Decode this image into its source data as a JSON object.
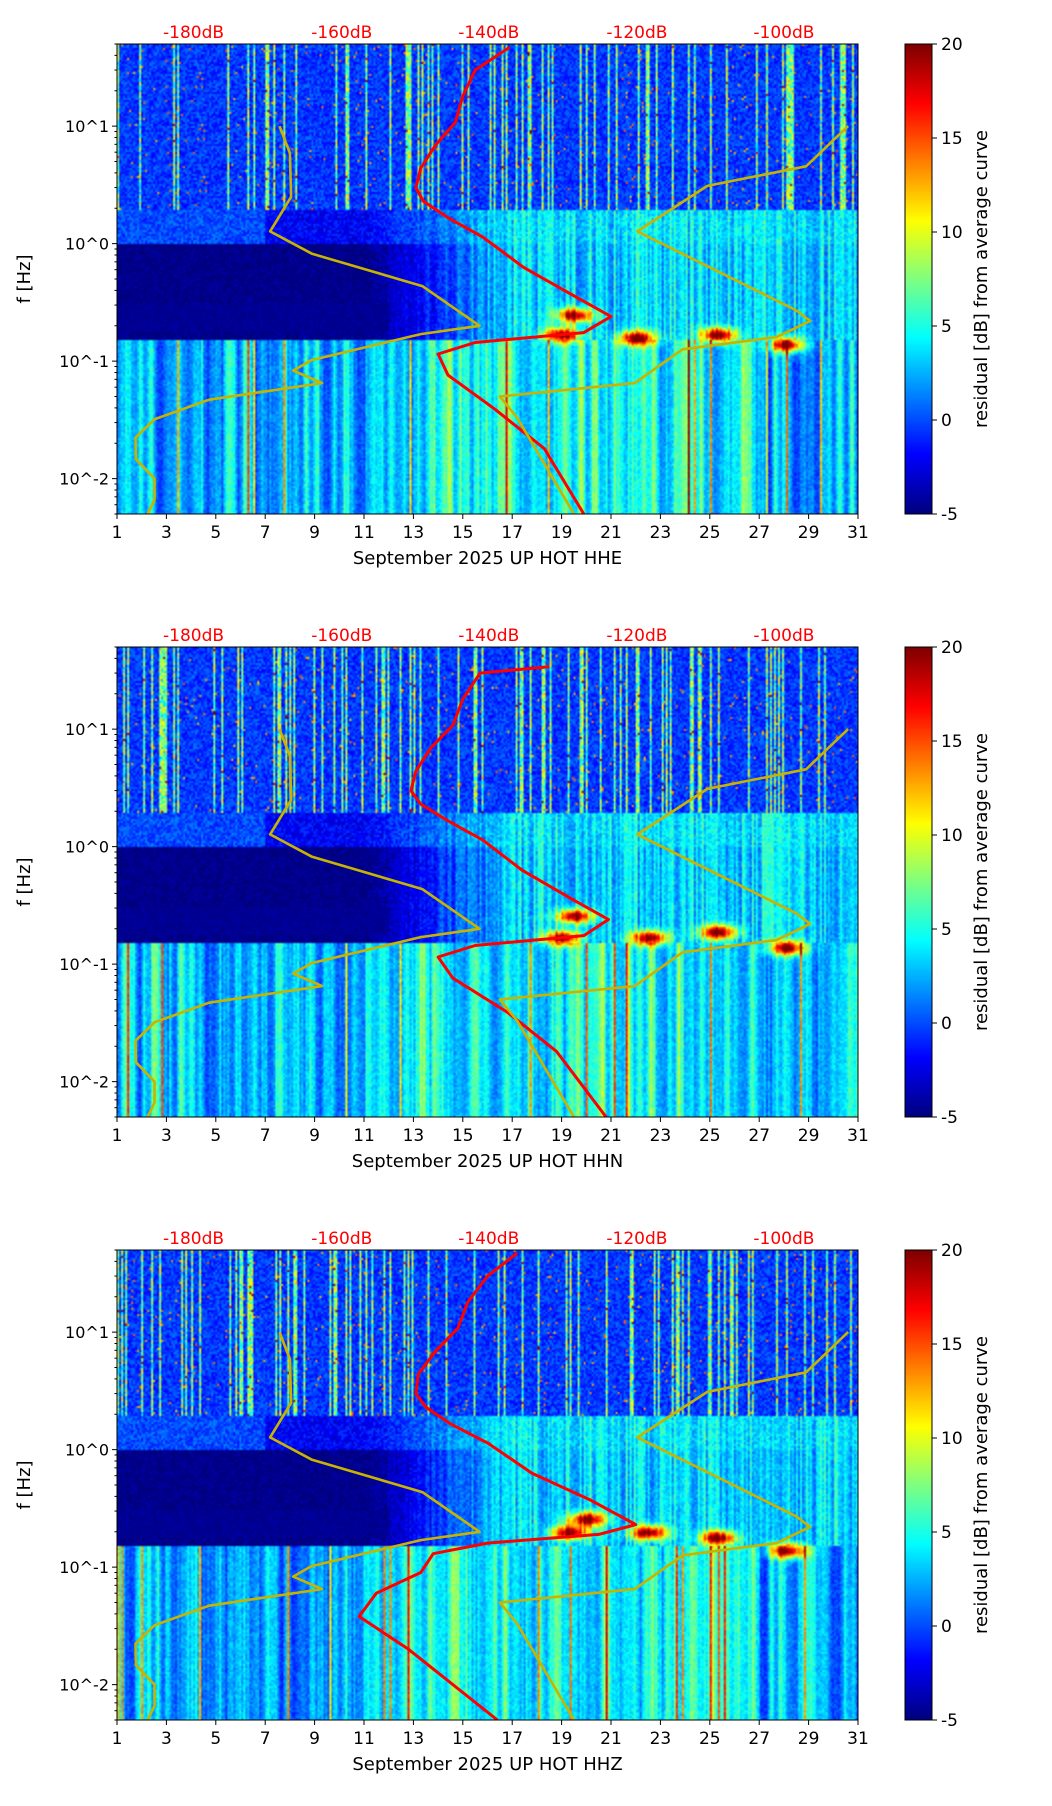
{
  "chart_data": [
    {
      "type": "heatmap",
      "title": "",
      "xlabel": "September 2025 UP HOT  HHE",
      "ylabel": "f [Hz]",
      "xlim": [
        1,
        31
      ],
      "ylim": [
        0.005,
        50
      ],
      "yscale": "log",
      "x_ticks": [
        1,
        3,
        5,
        7,
        9,
        11,
        13,
        15,
        17,
        19,
        21,
        23,
        25,
        27,
        29,
        31
      ],
      "y_ticks": [
        {
          "value": 10,
          "label": "10^1"
        },
        {
          "value": 1,
          "label": "10^0"
        },
        {
          "value": 0.1,
          "label": "10^-1"
        },
        {
          "value": 0.01,
          "label": "10^-2"
        }
      ],
      "top_axis_labels": [
        {
          "day": 4.1,
          "label": "-180dB"
        },
        {
          "day": 10.1,
          "label": "-160dB"
        },
        {
          "day": 16.05,
          "label": "-140dB"
        },
        {
          "day": 22.05,
          "label": "-120dB"
        },
        {
          "day": 28.0,
          "label": "-100dB"
        }
      ],
      "colorbar": {
        "label": "residual [dB] from average curve",
        "range": [
          -5,
          20
        ],
        "ticks": [
          20,
          15,
          10,
          5,
          0,
          -5
        ],
        "colormap": "jet"
      },
      "series": [
        {
          "name": "average PSD curve",
          "color": "#ff0000",
          "points": [
            [
              16.9,
              47
            ],
            [
              15.5,
              30
            ],
            [
              15.0,
              18
            ],
            [
              14.7,
              10.8
            ],
            [
              13.9,
              6.9
            ],
            [
              13.3,
              4.4
            ],
            [
              13.1,
              3.0
            ],
            [
              13.4,
              2.3
            ],
            [
              14.4,
              1.66
            ],
            [
              15.8,
              1.14
            ],
            [
              17.45,
              0.63
            ],
            [
              19.4,
              0.37
            ],
            [
              21.0,
              0.24
            ],
            [
              19.9,
              0.175
            ],
            [
              15.5,
              0.144
            ],
            [
              14.0,
              0.115
            ],
            [
              14.4,
              0.076
            ],
            [
              16.3,
              0.039
            ],
            [
              18.3,
              0.018
            ],
            [
              19.9,
              0.005
            ]
          ]
        },
        {
          "name": "low noise model",
          "color": "#c8b400",
          "points": [
            [
              7.58,
              10
            ],
            [
              8.0,
              5.9
            ],
            [
              8.05,
              2.5
            ],
            [
              7.2,
              1.27
            ],
            [
              8.9,
              0.82
            ],
            [
              13.36,
              0.435
            ],
            [
              15.68,
              0.2
            ],
            [
              13.3,
              0.17
            ],
            [
              8.88,
              0.102
            ],
            [
              8.13,
              0.083
            ],
            [
              9.3,
              0.065
            ],
            [
              4.73,
              0.047
            ],
            [
              2.52,
              0.032
            ],
            [
              1.75,
              0.0223
            ],
            [
              1.77,
              0.0146
            ],
            [
              2.52,
              0.01
            ],
            [
              2.52,
              0.0066
            ],
            [
              2.24,
              0.005
            ]
          ]
        },
        {
          "name": "high noise model",
          "color": "#c8b400",
          "points": [
            [
              30.6,
              10
            ],
            [
              28.9,
              4.55
            ],
            [
              24.9,
              3.1
            ],
            [
              22.07,
              1.27
            ],
            [
              28.5,
              0.27
            ],
            [
              29.06,
              0.22
            ],
            [
              27.7,
              0.16
            ],
            [
              23.9,
              0.126
            ],
            [
              21.96,
              0.065
            ],
            [
              16.5,
              0.05
            ],
            [
              17.2,
              0.033
            ],
            [
              19.5,
              0.005
            ]
          ]
        }
      ],
      "hotspots": [
        [
          19,
          0.17
        ],
        [
          28.1,
          0.14
        ],
        [
          22,
          0.16
        ],
        [
          25.3,
          0.17
        ],
        [
          19.5,
          0.25
        ]
      ]
    },
    {
      "type": "heatmap",
      "title": "",
      "xlabel": "September 2025 UP HOT  HHN",
      "ylabel": "f [Hz]",
      "xlim": [
        1,
        31
      ],
      "ylim": [
        0.005,
        50
      ],
      "yscale": "log",
      "x_ticks": [
        1,
        3,
        5,
        7,
        9,
        11,
        13,
        15,
        17,
        19,
        21,
        23,
        25,
        27,
        29,
        31
      ],
      "y_ticks": [
        {
          "value": 10,
          "label": "10^1"
        },
        {
          "value": 1,
          "label": "10^0"
        },
        {
          "value": 0.1,
          "label": "10^-1"
        },
        {
          "value": 0.01,
          "label": "10^-2"
        }
      ],
      "top_axis_labels": [
        {
          "day": 4.1,
          "label": "-180dB"
        },
        {
          "day": 10.1,
          "label": "-160dB"
        },
        {
          "day": 16.05,
          "label": "-140dB"
        },
        {
          "day": 22.05,
          "label": "-120dB"
        },
        {
          "day": 28.0,
          "label": "-100dB"
        }
      ],
      "colorbar": {
        "label": "residual [dB] from average curve",
        "range": [
          -5,
          20
        ],
        "ticks": [
          20,
          15,
          10,
          5,
          0,
          -5
        ],
        "colormap": "jet"
      },
      "series": [
        {
          "name": "average PSD curve",
          "color": "#ff0000",
          "points": [
            [
              18.5,
              34
            ],
            [
              15.7,
              30
            ],
            [
              15.0,
              18
            ],
            [
              14.6,
              10.8
            ],
            [
              13.7,
              6.9
            ],
            [
              13.1,
              4.4
            ],
            [
              12.9,
              3.0
            ],
            [
              13.3,
              2.3
            ],
            [
              14.4,
              1.66
            ],
            [
              15.8,
              1.14
            ],
            [
              17.4,
              0.63
            ],
            [
              19.3,
              0.37
            ],
            [
              20.9,
              0.24
            ],
            [
              19.9,
              0.175
            ],
            [
              15.5,
              0.144
            ],
            [
              14.0,
              0.115
            ],
            [
              14.6,
              0.076
            ],
            [
              16.8,
              0.039
            ],
            [
              18.8,
              0.018
            ],
            [
              20.8,
              0.005
            ]
          ]
        },
        {
          "name": "low noise model",
          "color": "#c8b400",
          "points": [
            [
              7.58,
              10
            ],
            [
              8.0,
              5.9
            ],
            [
              8.05,
              2.5
            ],
            [
              7.2,
              1.27
            ],
            [
              8.9,
              0.82
            ],
            [
              13.36,
              0.435
            ],
            [
              15.68,
              0.2
            ],
            [
              13.3,
              0.17
            ],
            [
              8.88,
              0.102
            ],
            [
              8.13,
              0.083
            ],
            [
              9.3,
              0.065
            ],
            [
              4.73,
              0.047
            ],
            [
              2.52,
              0.032
            ],
            [
              1.75,
              0.0223
            ],
            [
              1.77,
              0.0146
            ],
            [
              2.52,
              0.01
            ],
            [
              2.52,
              0.0066
            ],
            [
              2.24,
              0.005
            ]
          ]
        },
        {
          "name": "high noise model",
          "color": "#c8b400",
          "points": [
            [
              30.6,
              10
            ],
            [
              28.9,
              4.55
            ],
            [
              24.9,
              3.1
            ],
            [
              22.07,
              1.27
            ],
            [
              28.5,
              0.27
            ],
            [
              29.06,
              0.22
            ],
            [
              27.7,
              0.16
            ],
            [
              23.9,
              0.126
            ],
            [
              21.96,
              0.065
            ],
            [
              16.5,
              0.05
            ],
            [
              17.2,
              0.033
            ],
            [
              19.5,
              0.005
            ]
          ]
        }
      ],
      "hotspots": [
        [
          19,
          0.17
        ],
        [
          28.1,
          0.14
        ],
        [
          25.3,
          0.19
        ],
        [
          19.5,
          0.26
        ],
        [
          22.5,
          0.17
        ]
      ]
    },
    {
      "type": "heatmap",
      "title": "",
      "xlabel": "September 2025 UP HOT  HHZ",
      "ylabel": "f [Hz]",
      "xlim": [
        1,
        31
      ],
      "ylim": [
        0.005,
        50
      ],
      "yscale": "log",
      "x_ticks": [
        1,
        3,
        5,
        7,
        9,
        11,
        13,
        15,
        17,
        19,
        21,
        23,
        25,
        27,
        29,
        31
      ],
      "y_ticks": [
        {
          "value": 10,
          "label": "10^1"
        },
        {
          "value": 1,
          "label": "10^0"
        },
        {
          "value": 0.1,
          "label": "10^-1"
        },
        {
          "value": 0.01,
          "label": "10^-2"
        }
      ],
      "top_axis_labels": [
        {
          "day": 4.1,
          "label": "-180dB"
        },
        {
          "day": 10.1,
          "label": "-160dB"
        },
        {
          "day": 16.05,
          "label": "-140dB"
        },
        {
          "day": 22.05,
          "label": "-120dB"
        },
        {
          "day": 28.0,
          "label": "-100dB"
        }
      ],
      "colorbar": {
        "label": "residual [dB] from average curve",
        "range": [
          -5,
          20
        ],
        "ticks": [
          20,
          15,
          10,
          5,
          0,
          -5
        ],
        "colormap": "jet"
      },
      "series": [
        {
          "name": "average PSD curve",
          "color": "#ff0000",
          "points": [
            [
              17.2,
              47
            ],
            [
              16.0,
              30
            ],
            [
              15.2,
              18
            ],
            [
              14.8,
              10.8
            ],
            [
              13.9,
              6.9
            ],
            [
              13.2,
              4.4
            ],
            [
              13.1,
              3.0
            ],
            [
              13.5,
              2.3
            ],
            [
              14.5,
              1.66
            ],
            [
              16.0,
              1.14
            ],
            [
              17.8,
              0.63
            ],
            [
              20.2,
              0.37
            ],
            [
              22.0,
              0.23
            ],
            [
              20.5,
              0.19
            ],
            [
              16.0,
              0.16
            ],
            [
              13.8,
              0.13
            ],
            [
              13.3,
              0.09
            ],
            [
              11.5,
              0.06
            ],
            [
              10.8,
              0.038
            ],
            [
              12.8,
              0.02
            ],
            [
              16.4,
              0.005
            ]
          ]
        },
        {
          "name": "low noise model",
          "color": "#c8b400",
          "points": [
            [
              7.58,
              10
            ],
            [
              8.0,
              5.9
            ],
            [
              8.05,
              2.5
            ],
            [
              7.2,
              1.27
            ],
            [
              8.9,
              0.82
            ],
            [
              13.36,
              0.435
            ],
            [
              15.68,
              0.2
            ],
            [
              13.3,
              0.17
            ],
            [
              8.88,
              0.102
            ],
            [
              8.13,
              0.083
            ],
            [
              9.3,
              0.065
            ],
            [
              4.73,
              0.047
            ],
            [
              2.52,
              0.032
            ],
            [
              1.75,
              0.0223
            ],
            [
              1.77,
              0.0146
            ],
            [
              2.52,
              0.01
            ],
            [
              2.52,
              0.0066
            ],
            [
              2.24,
              0.005
            ]
          ]
        },
        {
          "name": "high noise model",
          "color": "#c8b400",
          "points": [
            [
              30.6,
              10
            ],
            [
              28.9,
              4.55
            ],
            [
              24.9,
              3.1
            ],
            [
              22.07,
              1.27
            ],
            [
              28.5,
              0.27
            ],
            [
              29.06,
              0.22
            ],
            [
              27.7,
              0.16
            ],
            [
              23.9,
              0.126
            ],
            [
              21.96,
              0.065
            ],
            [
              16.5,
              0.05
            ],
            [
              17.2,
              0.033
            ],
            [
              19.5,
              0.005
            ]
          ]
        }
      ],
      "hotspots": [
        [
          19.3,
          0.2
        ],
        [
          28.1,
          0.14
        ],
        [
          25.3,
          0.18
        ],
        [
          20,
          0.26
        ],
        [
          22.5,
          0.2
        ]
      ]
    }
  ]
}
